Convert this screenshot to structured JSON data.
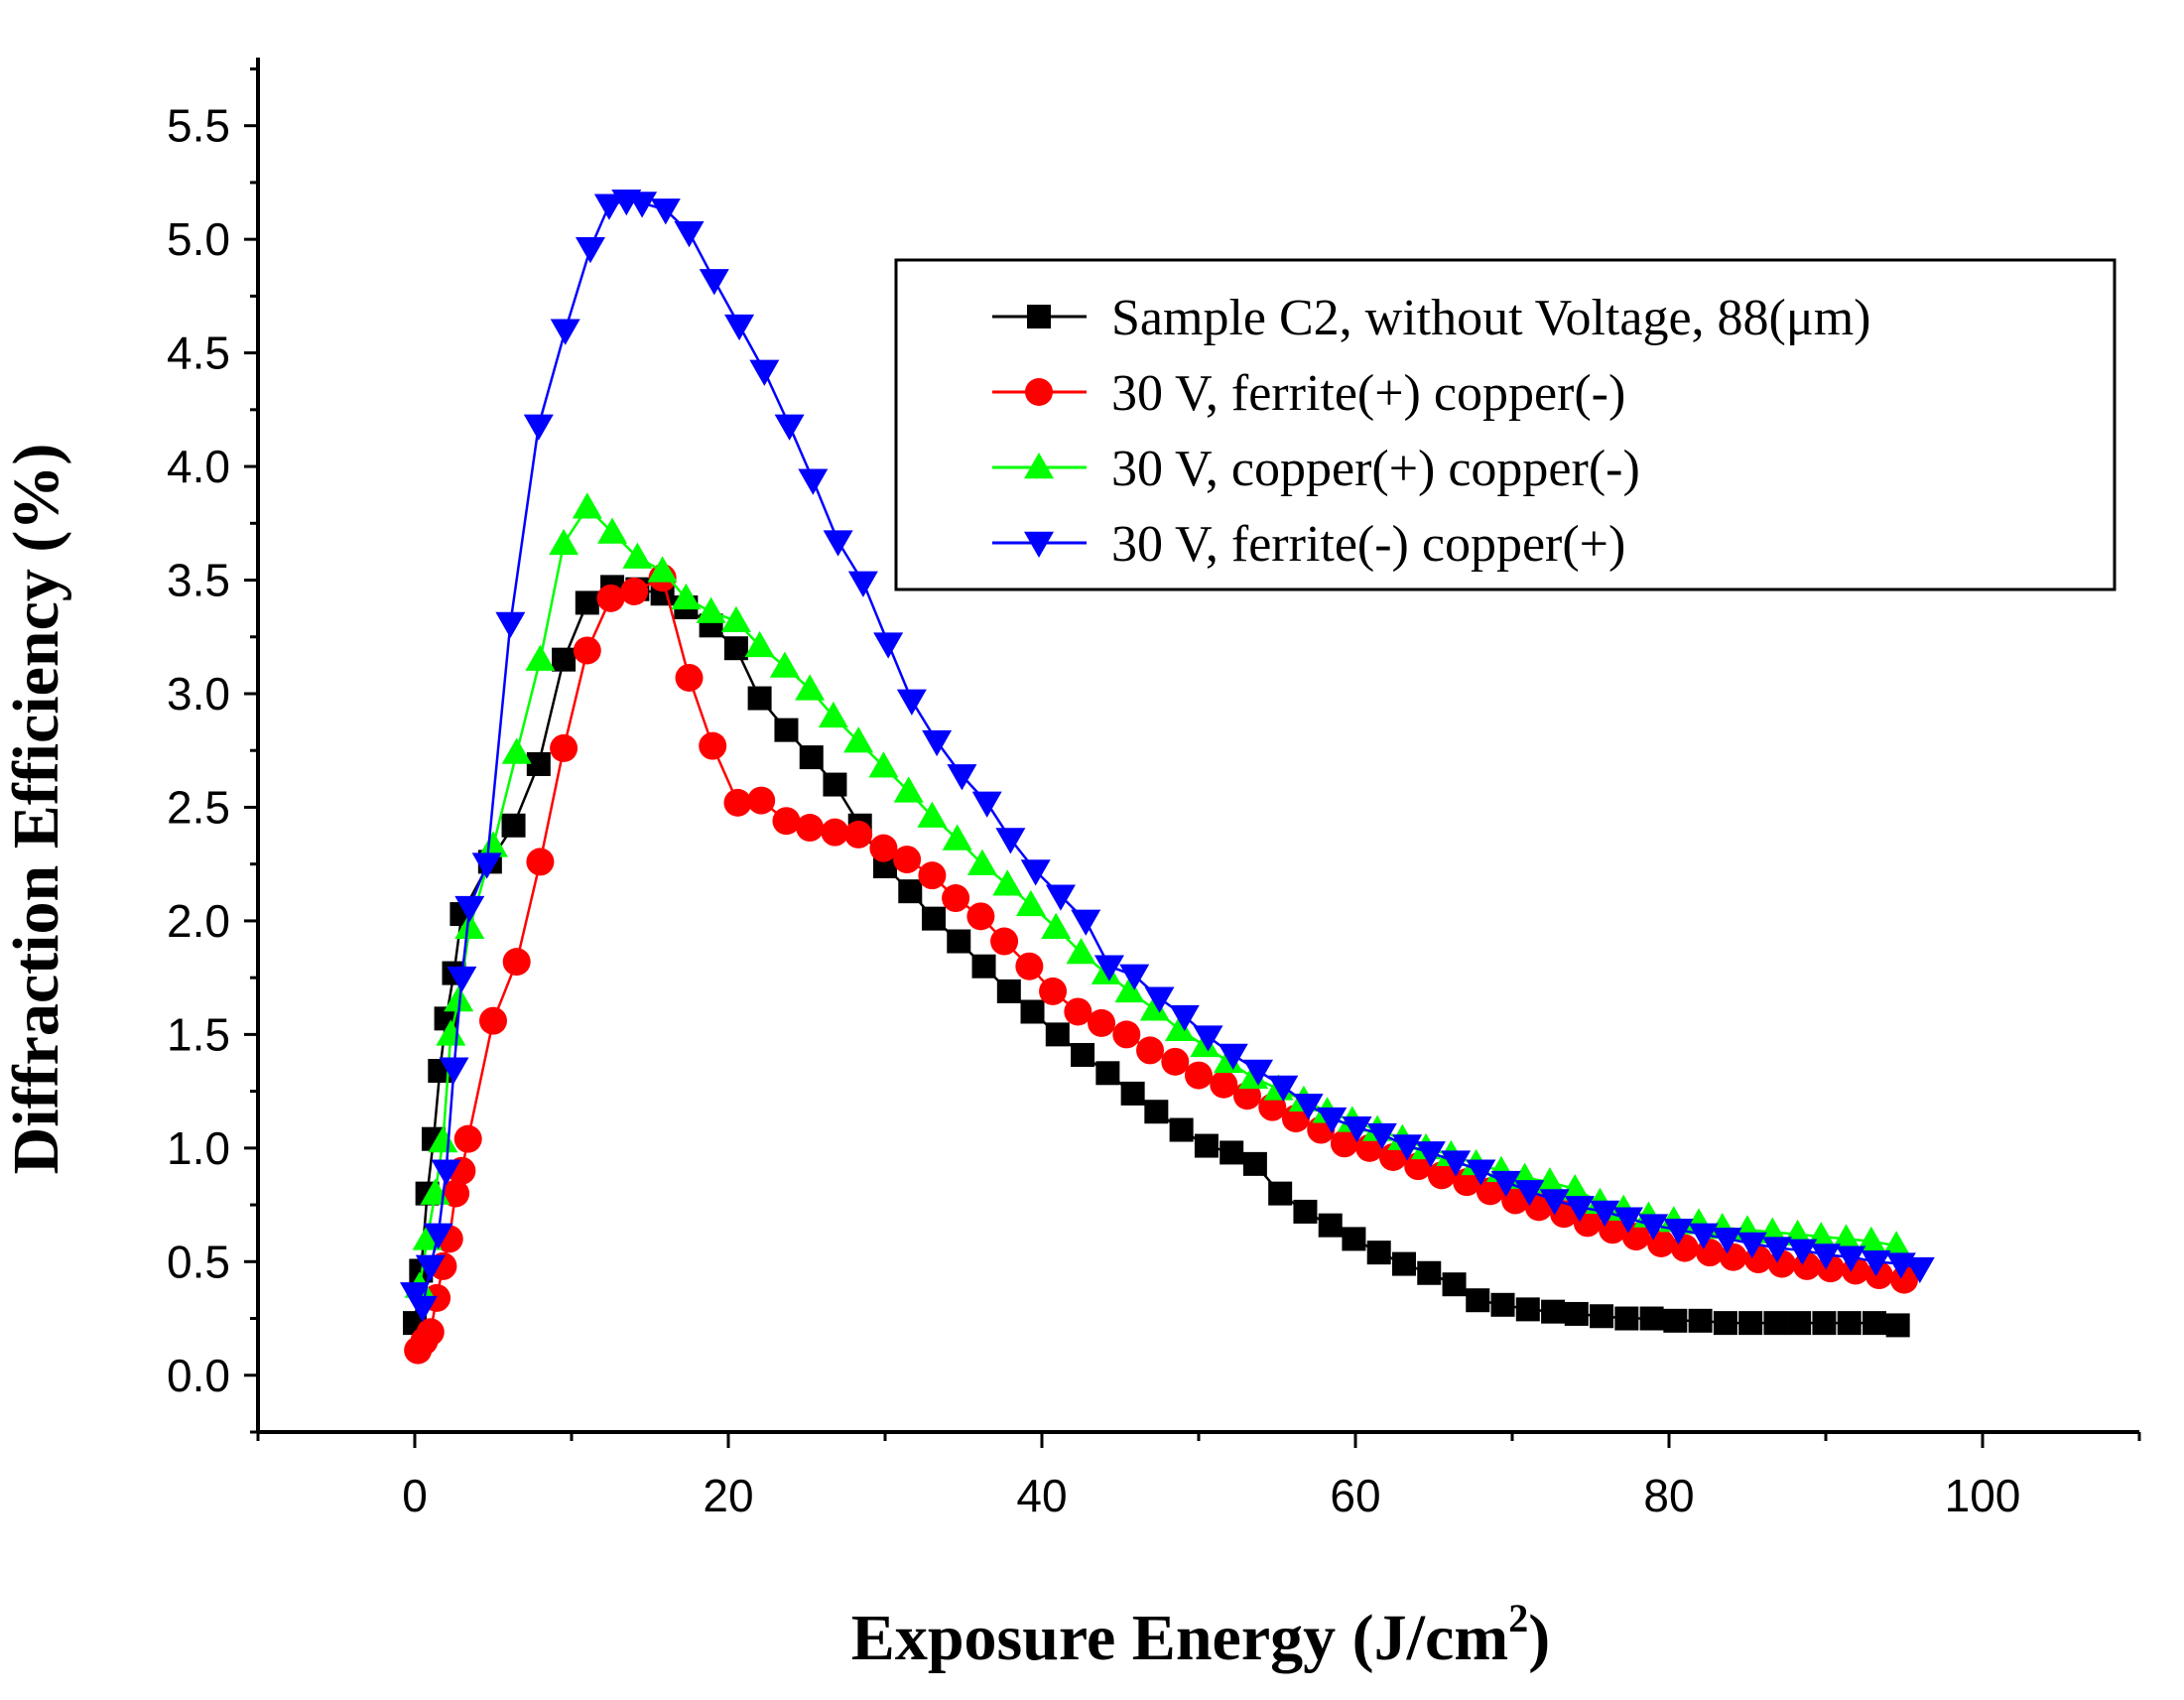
{
  "chart_data": {
    "type": "line",
    "title": "",
    "xlabel": "Exposure Energy (J/cm",
    "xlabel_sup": "2",
    "xlabel_end": ")",
    "ylabel": "Diffraction Efficiency (%)",
    "xlim": [
      -10,
      110
    ],
    "ylim": [
      -0.25,
      5.8
    ],
    "xticks": [
      0,
      20,
      40,
      60,
      80,
      100
    ],
    "xtick_labels": [
      "0",
      "20",
      "40",
      "60",
      "80",
      "100"
    ],
    "yticks": [
      0.0,
      0.5,
      1.0,
      1.5,
      2.0,
      2.5,
      3.0,
      3.5,
      4.0,
      4.5,
      5.0,
      5.5
    ],
    "ytick_labels": [
      "0.0",
      "0.5",
      "1.0",
      "1.5",
      "2.0",
      "2.5",
      "3.0",
      "3.5",
      "4.0",
      "4.5",
      "5.0",
      "5.5"
    ],
    "grid": false,
    "legend_position": "top-right",
    "series": [
      {
        "name": "Sample C2, without Voltage, 88(μm)",
        "color": "#000000",
        "marker": "square",
        "x": [
          0,
          0.4,
          0.8,
          1.2,
          1.6,
          2.0,
          2.5,
          3.0,
          4.8,
          6.3,
          7.9,
          9.5,
          11,
          12.6,
          14.2,
          15.8,
          17.3,
          18.9,
          20.5,
          22,
          23.7,
          25.3,
          26.8,
          28.4,
          30,
          31.6,
          33.1,
          34.7,
          36.3,
          37.9,
          39.4,
          41,
          42.6,
          44.2,
          45.8,
          47.3,
          48.9,
          50.5,
          52.1,
          53.6,
          55.2,
          56.8,
          58.4,
          59.9,
          61.5,
          63.1,
          64.7,
          66.3,
          67.8,
          69.4,
          71,
          72.6,
          74.1,
          75.7,
          77.3,
          78.9,
          80.4,
          82,
          83.6,
          85.2,
          86.8,
          88.3,
          89.9,
          91.5,
          93.1,
          94.6
        ],
        "values": [
          0.23,
          0.46,
          0.8,
          1.04,
          1.34,
          1.57,
          1.77,
          2.03,
          2.26,
          2.42,
          2.69,
          3.15,
          3.4,
          3.47,
          3.46,
          3.44,
          3.38,
          3.3,
          3.2,
          2.98,
          2.84,
          2.72,
          2.6,
          2.42,
          2.24,
          2.13,
          2.01,
          1.91,
          1.8,
          1.69,
          1.6,
          1.5,
          1.41,
          1.33,
          1.24,
          1.16,
          1.08,
          1.01,
          0.98,
          0.93,
          0.8,
          0.72,
          0.66,
          0.6,
          0.54,
          0.49,
          0.45,
          0.4,
          0.33,
          0.31,
          0.29,
          0.28,
          0.27,
          0.26,
          0.25,
          0.25,
          0.24,
          0.24,
          0.23,
          0.23,
          0.23,
          0.23,
          0.23,
          0.23,
          0.23,
          0.22
        ]
      },
      {
        "name": "30 V, ferrite(+) copper(-)",
        "color": "#ff0000",
        "marker": "circle",
        "x": [
          0.2,
          0.6,
          1.0,
          1.4,
          1.8,
          2.2,
          2.6,
          3.0,
          3.4,
          5,
          6.5,
          8,
          9.5,
          11,
          12.5,
          14,
          15.8,
          17.5,
          19,
          20.6,
          22.1,
          23.7,
          25.2,
          26.8,
          28.3,
          29.9,
          31.4,
          33,
          34.5,
          36.1,
          37.6,
          39.2,
          40.7,
          42.3,
          43.8,
          45.4,
          46.9,
          48.5,
          50,
          51.6,
          53.1,
          54.7,
          56.2,
          57.8,
          59.3,
          60.9,
          62.4,
          64,
          65.5,
          67.1,
          68.6,
          70.2,
          71.7,
          73.3,
          74.8,
          76.4,
          77.9,
          79.5,
          81,
          82.6,
          84.1,
          85.7,
          87.2,
          88.8,
          90.3,
          91.9,
          93.4,
          95
        ],
        "values": [
          0.11,
          0.15,
          0.19,
          0.34,
          0.48,
          0.6,
          0.8,
          0.9,
          1.04,
          1.56,
          1.82,
          2.26,
          2.76,
          3.19,
          3.42,
          3.45,
          3.51,
          3.07,
          2.77,
          2.52,
          2.53,
          2.44,
          2.41,
          2.39,
          2.38,
          2.32,
          2.27,
          2.2,
          2.1,
          2.02,
          1.91,
          1.8,
          1.69,
          1.6,
          1.55,
          1.5,
          1.43,
          1.38,
          1.32,
          1.28,
          1.23,
          1.18,
          1.13,
          1.08,
          1.02,
          1.0,
          0.96,
          0.92,
          0.88,
          0.85,
          0.81,
          0.77,
          0.74,
          0.71,
          0.67,
          0.64,
          0.61,
          0.58,
          0.56,
          0.54,
          0.52,
          0.51,
          0.49,
          0.48,
          0.47,
          0.46,
          0.44,
          0.42
        ]
      },
      {
        "name": "30 V, copper(+) copper(-)",
        "color": "#00ff00",
        "marker": "triangle-up",
        "x": [
          0.3,
          0.8,
          1.3,
          1.8,
          2.3,
          2.8,
          3.5,
          5,
          6.5,
          8,
          9.5,
          11,
          12.6,
          14.2,
          15.8,
          17.3,
          18.9,
          20.5,
          22,
          23.6,
          25.2,
          26.7,
          28.3,
          29.9,
          31.5,
          33,
          34.6,
          36.2,
          37.8,
          39.3,
          40.9,
          42.5,
          44.1,
          45.6,
          47.2,
          48.8,
          50.4,
          51.9,
          53.5,
          55.1,
          56.7,
          58.2,
          59.8,
          61.4,
          63,
          64.5,
          66.1,
          67.7,
          69.3,
          70.8,
          72.4,
          74,
          75.6,
          77.1,
          78.7,
          80.3,
          81.9,
          83.4,
          85,
          86.6,
          88.2,
          89.7,
          91.3,
          92.9,
          94.5
        ],
        "values": [
          0.39,
          0.6,
          0.8,
          1.03,
          1.5,
          1.65,
          1.97,
          2.33,
          2.74,
          3.15,
          3.66,
          3.82,
          3.71,
          3.6,
          3.54,
          3.42,
          3.36,
          3.32,
          3.21,
          3.12,
          3.02,
          2.9,
          2.79,
          2.68,
          2.57,
          2.46,
          2.36,
          2.25,
          2.16,
          2.07,
          1.97,
          1.86,
          1.77,
          1.69,
          1.61,
          1.52,
          1.45,
          1.38,
          1.31,
          1.26,
          1.21,
          1.16,
          1.12,
          1.08,
          1.04,
          1.0,
          0.97,
          0.93,
          0.9,
          0.87,
          0.85,
          0.82,
          0.76,
          0.73,
          0.7,
          0.68,
          0.67,
          0.65,
          0.64,
          0.63,
          0.62,
          0.61,
          0.6,
          0.59,
          0.57
        ]
      },
      {
        "name": "30 V, ferrite(-) copper(+)",
        "color": "#0000ff",
        "marker": "triangle-down",
        "x": [
          0,
          0.5,
          1.0,
          1.5,
          2.0,
          2.5,
          3.0,
          3.5,
          4.6,
          6.1,
          7.9,
          9.6,
          11.2,
          12.4,
          13.5,
          14.5,
          16,
          17.5,
          19.1,
          20.7,
          22.3,
          23.9,
          25.4,
          27,
          28.6,
          30.2,
          31.7,
          33.3,
          34.9,
          36.5,
          38,
          39.6,
          41.2,
          42.8,
          44.3,
          45.9,
          47.5,
          49.1,
          50.6,
          52.2,
          53.8,
          55.4,
          57,
          58.5,
          60.1,
          61.7,
          63.3,
          64.8,
          66.4,
          68,
          69.6,
          71.1,
          72.7,
          74.3,
          75.9,
          77.4,
          79,
          80.6,
          82.2,
          83.7,
          85.3,
          86.9,
          88.5,
          90,
          91.6,
          93.2,
          94.8,
          96
        ],
        "values": [
          0.36,
          0.3,
          0.48,
          0.62,
          0.9,
          1.35,
          1.75,
          2.06,
          2.25,
          3.31,
          4.18,
          4.6,
          4.96,
          5.15,
          5.17,
          5.16,
          5.13,
          5.03,
          4.82,
          4.62,
          4.42,
          4.18,
          3.94,
          3.67,
          3.49,
          3.22,
          2.97,
          2.79,
          2.64,
          2.52,
          2.36,
          2.22,
          2.11,
          2.0,
          1.8,
          1.76,
          1.66,
          1.58,
          1.49,
          1.41,
          1.34,
          1.27,
          1.19,
          1.13,
          1.09,
          1.06,
          1.01,
          0.98,
          0.94,
          0.9,
          0.85,
          0.81,
          0.77,
          0.74,
          0.72,
          0.69,
          0.66,
          0.64,
          0.62,
          0.6,
          0.58,
          0.56,
          0.55,
          0.53,
          0.52,
          0.5,
          0.49,
          0.47
        ]
      }
    ]
  }
}
